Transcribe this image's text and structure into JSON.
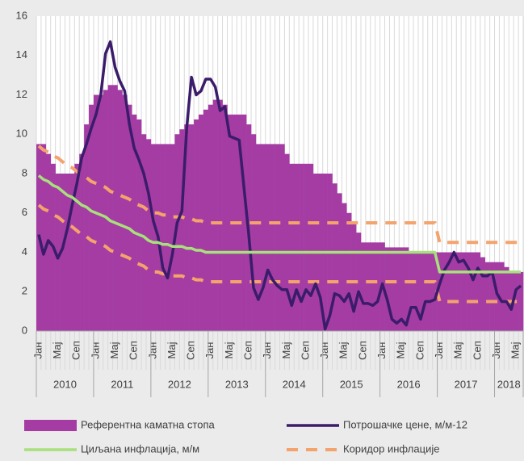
{
  "chart_data": {
    "type": "bar-line",
    "categories": [
      "Јан",
      null,
      null,
      null,
      "Мај",
      null,
      null,
      null,
      "Сеп",
      null,
      null,
      null,
      "Јан",
      null,
      null,
      null,
      "Мај",
      null,
      null,
      null,
      "Сеп",
      null,
      null,
      null,
      "Јан",
      null,
      null,
      null,
      "Мај",
      null,
      null,
      null,
      "Сеп",
      null,
      null,
      null,
      "Јан",
      null,
      null,
      null,
      "Мај",
      null,
      null,
      null,
      "Сеп",
      null,
      null,
      null,
      "Јан",
      null,
      null,
      null,
      "Мај",
      null,
      null,
      null,
      "Сеп",
      null,
      null,
      null,
      "Јан",
      null,
      null,
      null,
      "Мај",
      null,
      null,
      null,
      "Сеп",
      null,
      null,
      null,
      "Јан",
      null,
      null,
      null,
      "Мај",
      null,
      null,
      null,
      "Сеп",
      null,
      null,
      null,
      "Јан",
      null,
      null,
      null,
      "Мај",
      null,
      null,
      null,
      "Сеп",
      null,
      null,
      null,
      "Јан",
      null,
      null,
      null,
      "Мај",
      null
    ],
    "years": [
      "2010",
      "2011",
      "2012",
      "2013",
      "2014",
      "2015",
      "2016",
      "2017",
      "2018"
    ],
    "ylim": [
      0,
      16
    ],
    "yticks": [
      0,
      2,
      4,
      6,
      8,
      10,
      12,
      14,
      16
    ],
    "grid": "x",
    "series": [
      {
        "name": "Референтна каматна стопа",
        "type": "bar",
        "color": "#a43ca4",
        "values": [
          9.5,
          9.5,
          9.0,
          8.5,
          8.0,
          8.0,
          8.0,
          8.0,
          8.5,
          9.0,
          10.5,
          11.5,
          12.0,
          12.0,
          12.25,
          12.5,
          12.5,
          12.25,
          12.0,
          11.5,
          11.0,
          10.75,
          10.0,
          9.75,
          9.5,
          9.5,
          9.5,
          9.5,
          9.5,
          10.0,
          10.25,
          10.5,
          10.5,
          10.75,
          11.0,
          11.25,
          11.5,
          11.75,
          11.75,
          11.5,
          11.0,
          11.0,
          11.0,
          11.0,
          10.5,
          10.0,
          9.5,
          9.5,
          9.5,
          9.5,
          9.5,
          9.5,
          9.0,
          8.5,
          8.5,
          8.5,
          8.5,
          8.5,
          8.0,
          8.0,
          8.0,
          8.0,
          7.5,
          7.0,
          6.5,
          6.0,
          5.5,
          5.0,
          4.5,
          4.5,
          4.5,
          4.5,
          4.5,
          4.25,
          4.25,
          4.25,
          4.25,
          4.25,
          4.0,
          4.0,
          4.0,
          4.0,
          4.0,
          4.0,
          4.0,
          4.0,
          4.0,
          4.0,
          4.0,
          4.0,
          4.0,
          4.0,
          4.0,
          3.75,
          3.5,
          3.5,
          3.5,
          3.5,
          3.25,
          3.0,
          3.0,
          3.0
        ]
      },
      {
        "name": "Потрошачке цене, м/м-12",
        "type": "line",
        "color": "#3b1c6b",
        "values": [
          4.9,
          3.9,
          4.6,
          4.3,
          3.7,
          4.2,
          5.2,
          6.4,
          7.5,
          8.8,
          9.5,
          10.3,
          11.0,
          12.0,
          14.1,
          14.7,
          13.4,
          12.7,
          12.2,
          10.5,
          9.3,
          8.7,
          8.0,
          7.0,
          5.6,
          4.8,
          3.2,
          2.7,
          3.9,
          5.5,
          6.1,
          10.3,
          12.9,
          12.0,
          12.2,
          12.8,
          12.8,
          12.4,
          11.2,
          11.4,
          9.9,
          9.8,
          9.7,
          7.3,
          4.9,
          2.2,
          1.6,
          2.2,
          3.1,
          2.6,
          2.3,
          2.1,
          2.1,
          1.3,
          2.1,
          1.5,
          2.1,
          1.8,
          2.4,
          1.7,
          0.1,
          0.8,
          1.9,
          1.8,
          1.5,
          1.9,
          1.0,
          2.0,
          1.4,
          1.4,
          1.3,
          1.5,
          2.4,
          1.6,
          0.6,
          0.4,
          0.6,
          0.3,
          1.2,
          1.2,
          0.6,
          1.5,
          1.5,
          1.6,
          2.4,
          3.1,
          3.5,
          4.0,
          3.5,
          3.6,
          3.2,
          2.6,
          3.2,
          2.8,
          2.8,
          3.0,
          1.9,
          1.5,
          1.5,
          1.1,
          2.1,
          2.3
        ]
      },
      {
        "name": "Циљана инфлација, м/м",
        "type": "line",
        "color": "#a8e07c",
        "values": [
          7.9,
          7.7,
          7.6,
          7.4,
          7.3,
          7.1,
          6.9,
          6.8,
          6.6,
          6.4,
          6.3,
          6.1,
          6.0,
          5.9,
          5.8,
          5.6,
          5.5,
          5.4,
          5.3,
          5.2,
          5.0,
          4.9,
          4.8,
          4.6,
          4.5,
          4.5,
          4.4,
          4.4,
          4.3,
          4.3,
          4.3,
          4.2,
          4.2,
          4.1,
          4.1,
          4.0,
          4.0,
          4.0,
          4.0,
          4.0,
          4.0,
          4.0,
          4.0,
          4.0,
          4.0,
          4.0,
          4.0,
          4.0,
          4.0,
          4.0,
          4.0,
          4.0,
          4.0,
          4.0,
          4.0,
          4.0,
          4.0,
          4.0,
          4.0,
          4.0,
          4.0,
          4.0,
          4.0,
          4.0,
          4.0,
          4.0,
          4.0,
          4.0,
          4.0,
          4.0,
          4.0,
          4.0,
          4.0,
          4.0,
          4.0,
          4.0,
          4.0,
          4.0,
          4.0,
          4.0,
          4.0,
          4.0,
          4.0,
          4.0,
          3.0,
          3.0,
          3.0,
          3.0,
          3.0,
          3.0,
          3.0,
          3.0,
          3.0,
          3.0,
          3.0,
          3.0,
          3.0,
          3.0,
          3.0,
          3.0,
          3.0,
          3.0
        ]
      },
      {
        "name": "Коридор инфлације",
        "type": "band",
        "color": "#f4a36c",
        "upper": [
          9.4,
          9.2,
          9.1,
          8.9,
          8.8,
          8.6,
          8.4,
          8.3,
          8.1,
          7.9,
          7.8,
          7.6,
          7.5,
          7.4,
          7.3,
          7.1,
          7.0,
          6.9,
          6.8,
          6.7,
          6.5,
          6.4,
          6.3,
          6.1,
          6.0,
          6.0,
          5.9,
          5.9,
          5.8,
          5.8,
          5.8,
          5.7,
          5.7,
          5.6,
          5.6,
          5.5,
          5.5,
          5.5,
          5.5,
          5.5,
          5.5,
          5.5,
          5.5,
          5.5,
          5.5,
          5.5,
          5.5,
          5.5,
          5.5,
          5.5,
          5.5,
          5.5,
          5.5,
          5.5,
          5.5,
          5.5,
          5.5,
          5.5,
          5.5,
          5.5,
          5.5,
          5.5,
          5.5,
          5.5,
          5.5,
          5.5,
          5.5,
          5.5,
          5.5,
          5.5,
          5.5,
          5.5,
          5.5,
          5.5,
          5.5,
          5.5,
          5.5,
          5.5,
          5.5,
          5.5,
          5.5,
          5.5,
          5.5,
          5.5,
          4.5,
          4.5,
          4.5,
          4.5,
          4.5,
          4.5,
          4.5,
          4.5,
          4.5,
          4.5,
          4.5,
          4.5,
          4.5,
          4.5,
          4.5,
          4.5,
          4.5,
          4.5
        ],
        "lower": [
          6.4,
          6.2,
          6.1,
          5.9,
          5.8,
          5.6,
          5.4,
          5.3,
          5.1,
          4.9,
          4.8,
          4.6,
          4.5,
          4.4,
          4.3,
          4.1,
          4.0,
          3.9,
          3.8,
          3.7,
          3.5,
          3.4,
          3.3,
          3.1,
          3.0,
          3.0,
          2.9,
          2.9,
          2.8,
          2.8,
          2.8,
          2.7,
          2.7,
          2.6,
          2.6,
          2.5,
          2.5,
          2.5,
          2.5,
          2.5,
          2.5,
          2.5,
          2.5,
          2.5,
          2.5,
          2.5,
          2.5,
          2.5,
          2.5,
          2.5,
          2.5,
          2.5,
          2.5,
          2.5,
          2.5,
          2.5,
          2.5,
          2.5,
          2.5,
          2.5,
          2.5,
          2.5,
          2.5,
          2.5,
          2.5,
          2.5,
          2.5,
          2.5,
          2.5,
          2.5,
          2.5,
          2.5,
          2.5,
          2.5,
          2.5,
          2.5,
          2.5,
          2.5,
          2.5,
          2.5,
          2.5,
          2.5,
          2.5,
          2.5,
          1.5,
          1.5,
          1.5,
          1.5,
          1.5,
          1.5,
          1.5,
          1.5,
          1.5,
          1.5,
          1.5,
          1.5,
          1.5,
          1.5,
          1.5,
          1.5,
          1.5,
          1.5
        ]
      }
    ]
  }
}
